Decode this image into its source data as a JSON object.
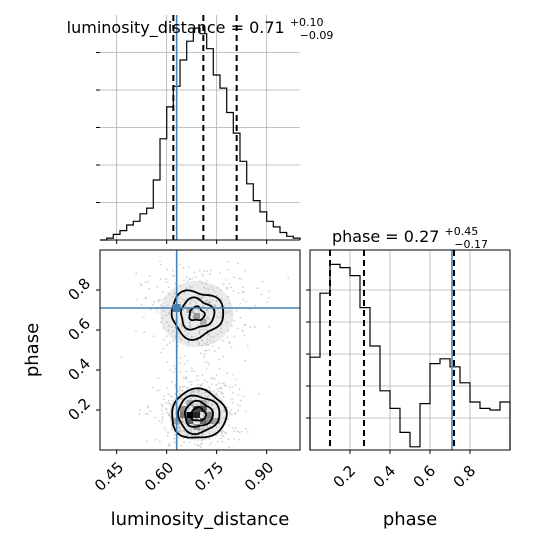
{
  "chart_data": {
    "type": "corner",
    "parameters": [
      "luminosity_distance",
      "phase"
    ],
    "truth": {
      "luminosity_distance": 0.63,
      "phase": 0.71
    },
    "colors": {
      "truth": "#4682b4",
      "hist": "#000000",
      "grid": "#b0b0b0"
    },
    "grid": true,
    "panels": [
      {
        "id": "hist-luminosity-distance",
        "type": "histogram",
        "title_text": "luminosity_distance = 0.71",
        "title_sup": "+0.10",
        "title_sub": "−0.09",
        "xlim": [
          0.4,
          1.0
        ],
        "ylim": [
          0,
          1.2
        ],
        "quantiles": [
          0.62,
          0.71,
          0.81
        ],
        "bin_edges": [
          0.4,
          0.42,
          0.44,
          0.46,
          0.48,
          0.5,
          0.52,
          0.54,
          0.56,
          0.58,
          0.6,
          0.62,
          0.64,
          0.66,
          0.68,
          0.7,
          0.72,
          0.74,
          0.76,
          0.78,
          0.8,
          0.82,
          0.84,
          0.86,
          0.88,
          0.9,
          0.92,
          0.94,
          0.96,
          0.98,
          1.0
        ],
        "counts": [
          0.0,
          0.01,
          0.03,
          0.05,
          0.08,
          0.1,
          0.14,
          0.17,
          0.32,
          0.54,
          0.71,
          0.82,
          0.96,
          1.06,
          1.13,
          1.1,
          1.02,
          0.88,
          0.81,
          0.68,
          0.57,
          0.42,
          0.3,
          0.21,
          0.15,
          0.1,
          0.07,
          0.04,
          0.02,
          0.01
        ],
        "yticks": [
          0.2,
          0.4,
          0.6,
          0.8,
          1.0
        ],
        "xticks": [
          0.45,
          0.6,
          0.75,
          0.9
        ]
      },
      {
        "id": "hist-phase",
        "type": "histogram",
        "title_text": "phase = 0.27",
        "title_sup": "+0.45",
        "title_sub": "−0.17",
        "xlim": [
          0.0,
          1.0
        ],
        "ylim": [
          0,
          1.25
        ],
        "quantiles": [
          0.1,
          0.27,
          0.72
        ],
        "bin_edges": [
          0.0,
          0.05,
          0.1,
          0.15,
          0.2,
          0.25,
          0.3,
          0.35,
          0.4,
          0.45,
          0.5,
          0.55,
          0.6,
          0.65,
          0.7,
          0.75,
          0.8,
          0.85,
          0.9,
          0.95,
          1.0
        ],
        "counts": [
          0.58,
          0.98,
          1.16,
          1.14,
          1.09,
          0.89,
          0.65,
          0.37,
          0.26,
          0.11,
          0.02,
          0.29,
          0.54,
          0.57,
          0.52,
          0.42,
          0.3,
          0.26,
          0.25,
          0.3
        ],
        "xticks": [
          0.2,
          0.4,
          0.6,
          0.8
        ],
        "xlabel": "phase"
      },
      {
        "id": "density-2d",
        "type": "2d-density",
        "xlim": [
          0.4,
          1.0
        ],
        "ylim": [
          0.0,
          1.0
        ],
        "xticks": [
          0.45,
          0.6,
          0.75,
          0.9
        ],
        "yticks": [
          0.2,
          0.4,
          0.6,
          0.8
        ],
        "xlabel": "luminosity_distance",
        "ylabel": "phase",
        "modes": [
          {
            "x": 0.695,
            "y": 0.178,
            "sx": 0.04,
            "sy": 0.06,
            "weight": 0.62
          },
          {
            "x": 0.69,
            "y": 0.68,
            "sx": 0.05,
            "sy": 0.075,
            "weight": 0.38
          }
        ],
        "high_density_cells": [
          {
            "x": 0.67,
            "y": 0.175,
            "level": 1.0
          },
          {
            "x": 0.69,
            "y": 0.175,
            "level": 0.85
          },
          {
            "x": 0.71,
            "y": 0.205,
            "level": 0.65
          },
          {
            "x": 0.69,
            "y": 0.205,
            "level": 0.7
          },
          {
            "x": 0.67,
            "y": 0.145,
            "level": 0.6
          },
          {
            "x": 0.71,
            "y": 0.145,
            "level": 0.55
          },
          {
            "x": 0.65,
            "y": 0.175,
            "level": 0.5
          },
          {
            "x": 0.73,
            "y": 0.175,
            "level": 0.45
          },
          {
            "x": 0.65,
            "y": 0.205,
            "level": 0.4
          },
          {
            "x": 0.73,
            "y": 0.145,
            "level": 0.4
          },
          {
            "x": 0.69,
            "y": 0.115,
            "level": 0.35
          },
          {
            "x": 0.75,
            "y": 0.145,
            "level": 0.3
          },
          {
            "x": 0.63,
            "y": 0.145,
            "level": 0.3
          },
          {
            "x": 0.71,
            "y": 0.235,
            "level": 0.3
          },
          {
            "x": 0.67,
            "y": 0.235,
            "level": 0.28
          },
          {
            "x": 0.69,
            "y": 0.67,
            "level": 0.35
          },
          {
            "x": 0.67,
            "y": 0.7,
            "level": 0.28
          },
          {
            "x": 0.71,
            "y": 0.64,
            "level": 0.25
          }
        ]
      }
    ]
  }
}
